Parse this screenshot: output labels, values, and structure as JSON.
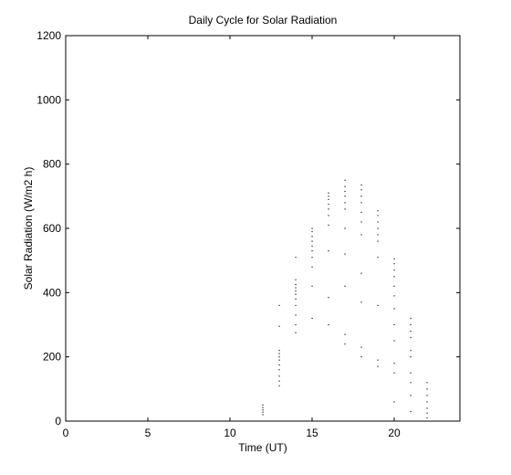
{
  "chart_data": {
    "type": "scatter",
    "title": "Daily Cycle for Solar Radiation",
    "xlabel": "Time (UT)",
    "ylabel": "Solar Radiation (W/m2 h)",
    "xlim": [
      0,
      24
    ],
    "ylim": [
      0,
      1200
    ],
    "xticks": [
      0,
      5,
      10,
      15,
      20
    ],
    "yticks": [
      0,
      200,
      400,
      600,
      800,
      1000,
      1200
    ],
    "grid": false,
    "marker_color": "#000000",
    "series": [
      {
        "points": [
          [
            12,
            20
          ],
          [
            12,
            28
          ],
          [
            12,
            35
          ],
          [
            12,
            42
          ],
          [
            12,
            50
          ],
          [
            13,
            110
          ],
          [
            13,
            125
          ],
          [
            13,
            140
          ],
          [
            13,
            160
          ],
          [
            13,
            175
          ],
          [
            13,
            190
          ],
          [
            13,
            200
          ],
          [
            13,
            210
          ],
          [
            13,
            220
          ],
          [
            13,
            295
          ],
          [
            13,
            360
          ],
          [
            14,
            275
          ],
          [
            14,
            300
          ],
          [
            14,
            330
          ],
          [
            14,
            360
          ],
          [
            14,
            380
          ],
          [
            14,
            395
          ],
          [
            14,
            405
          ],
          [
            14,
            415
          ],
          [
            14,
            425
          ],
          [
            14,
            440
          ],
          [
            14,
            510
          ],
          [
            15,
            320
          ],
          [
            15,
            420
          ],
          [
            15,
            480
          ],
          [
            15,
            510
          ],
          [
            15,
            530
          ],
          [
            15,
            545
          ],
          [
            15,
            560
          ],
          [
            15,
            575
          ],
          [
            15,
            590
          ],
          [
            15,
            600
          ],
          [
            16,
            300
          ],
          [
            16,
            385
          ],
          [
            16,
            530
          ],
          [
            16,
            610
          ],
          [
            16,
            640
          ],
          [
            16,
            660
          ],
          [
            16,
            675
          ],
          [
            16,
            690
          ],
          [
            16,
            700
          ],
          [
            16,
            710
          ],
          [
            17,
            240
          ],
          [
            17,
            270
          ],
          [
            17,
            420
          ],
          [
            17,
            520
          ],
          [
            17,
            600
          ],
          [
            17,
            660
          ],
          [
            17,
            680
          ],
          [
            17,
            700
          ],
          [
            17,
            715
          ],
          [
            17,
            730
          ],
          [
            17,
            750
          ],
          [
            18,
            200
          ],
          [
            18,
            230
          ],
          [
            18,
            370
          ],
          [
            18,
            460
          ],
          [
            18,
            580
          ],
          [
            18,
            620
          ],
          [
            18,
            650
          ],
          [
            18,
            680
          ],
          [
            18,
            700
          ],
          [
            18,
            720
          ],
          [
            18,
            735
          ],
          [
            19,
            170
          ],
          [
            19,
            190
          ],
          [
            19,
            360
          ],
          [
            19,
            510
          ],
          [
            19,
            560
          ],
          [
            19,
            580
          ],
          [
            19,
            600
          ],
          [
            19,
            620
          ],
          [
            19,
            640
          ],
          [
            19,
            655
          ],
          [
            20,
            60
          ],
          [
            20,
            150
          ],
          [
            20,
            180
          ],
          [
            20,
            250
          ],
          [
            20,
            300
          ],
          [
            20,
            350
          ],
          [
            20,
            390
          ],
          [
            20,
            420
          ],
          [
            20,
            450
          ],
          [
            20,
            470
          ],
          [
            20,
            490
          ],
          [
            20,
            505
          ],
          [
            21,
            30
          ],
          [
            21,
            80
          ],
          [
            21,
            120
          ],
          [
            21,
            150
          ],
          [
            21,
            200
          ],
          [
            21,
            220
          ],
          [
            21,
            260
          ],
          [
            21,
            280
          ],
          [
            21,
            300
          ],
          [
            21,
            320
          ],
          [
            22,
            10
          ],
          [
            22,
            25
          ],
          [
            22,
            40
          ],
          [
            22,
            60
          ],
          [
            22,
            80
          ],
          [
            22,
            100
          ],
          [
            22,
            120
          ]
        ]
      }
    ]
  }
}
